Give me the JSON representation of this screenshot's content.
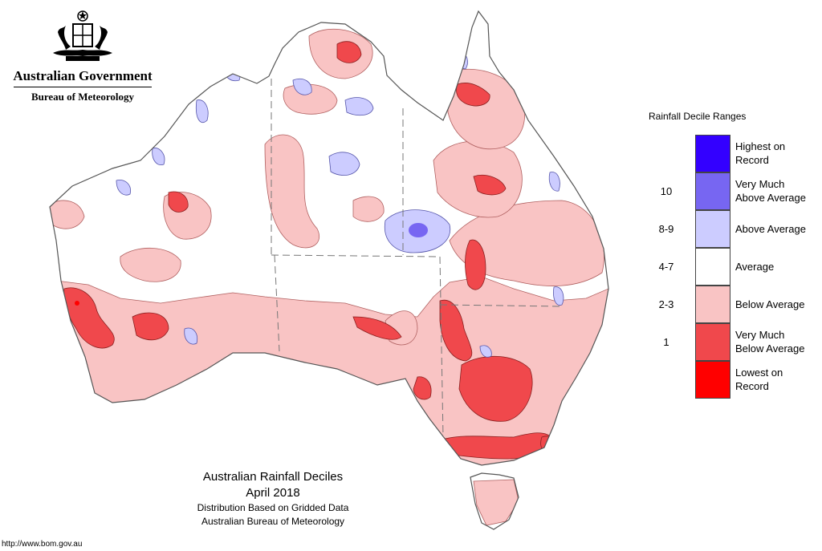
{
  "header": {
    "org": "Australian Government",
    "agency": "Bureau of Meteorology",
    "emblem_icon": "coat-of-arms-icon"
  },
  "legend": {
    "title": "Rainfall Decile Ranges",
    "items": [
      {
        "code": "",
        "label_lines": [
          "Highest on",
          "Record"
        ],
        "color": "#3300ff"
      },
      {
        "code": "10",
        "label_lines": [
          "Very Much",
          "Above Average"
        ],
        "color": "#7766f2"
      },
      {
        "code": "8-9",
        "label_lines": [
          "Above Average"
        ],
        "color": "#ccccff"
      },
      {
        "code": "4-7",
        "label_lines": [
          "Average"
        ],
        "color": "#ffffff"
      },
      {
        "code": "2-3",
        "label_lines": [
          "Below Average"
        ],
        "color": "#f9c4c4"
      },
      {
        "code": "1",
        "label_lines": [
          "Very Much",
          "Below Average"
        ],
        "color": "#f0484c"
      },
      {
        "code": "",
        "label_lines": [
          "Lowest on",
          "Record"
        ],
        "color": "#ff0000"
      }
    ]
  },
  "caption": {
    "line1": "Australian Rainfall Deciles",
    "line2": "April 2018",
    "line3": "Distribution Based on Gridded Data",
    "line4": "Australian Bureau of Meteorology"
  },
  "footer": {
    "url": "http://www.bom.gov.au"
  },
  "colors": {
    "below_average": "#f9c4c4",
    "very_much_below": "#f0484c",
    "lowest": "#ff0000",
    "above_average": "#ccccff",
    "very_much_above": "#7766f2",
    "highest": "#3300ff",
    "outline": "#555555"
  }
}
